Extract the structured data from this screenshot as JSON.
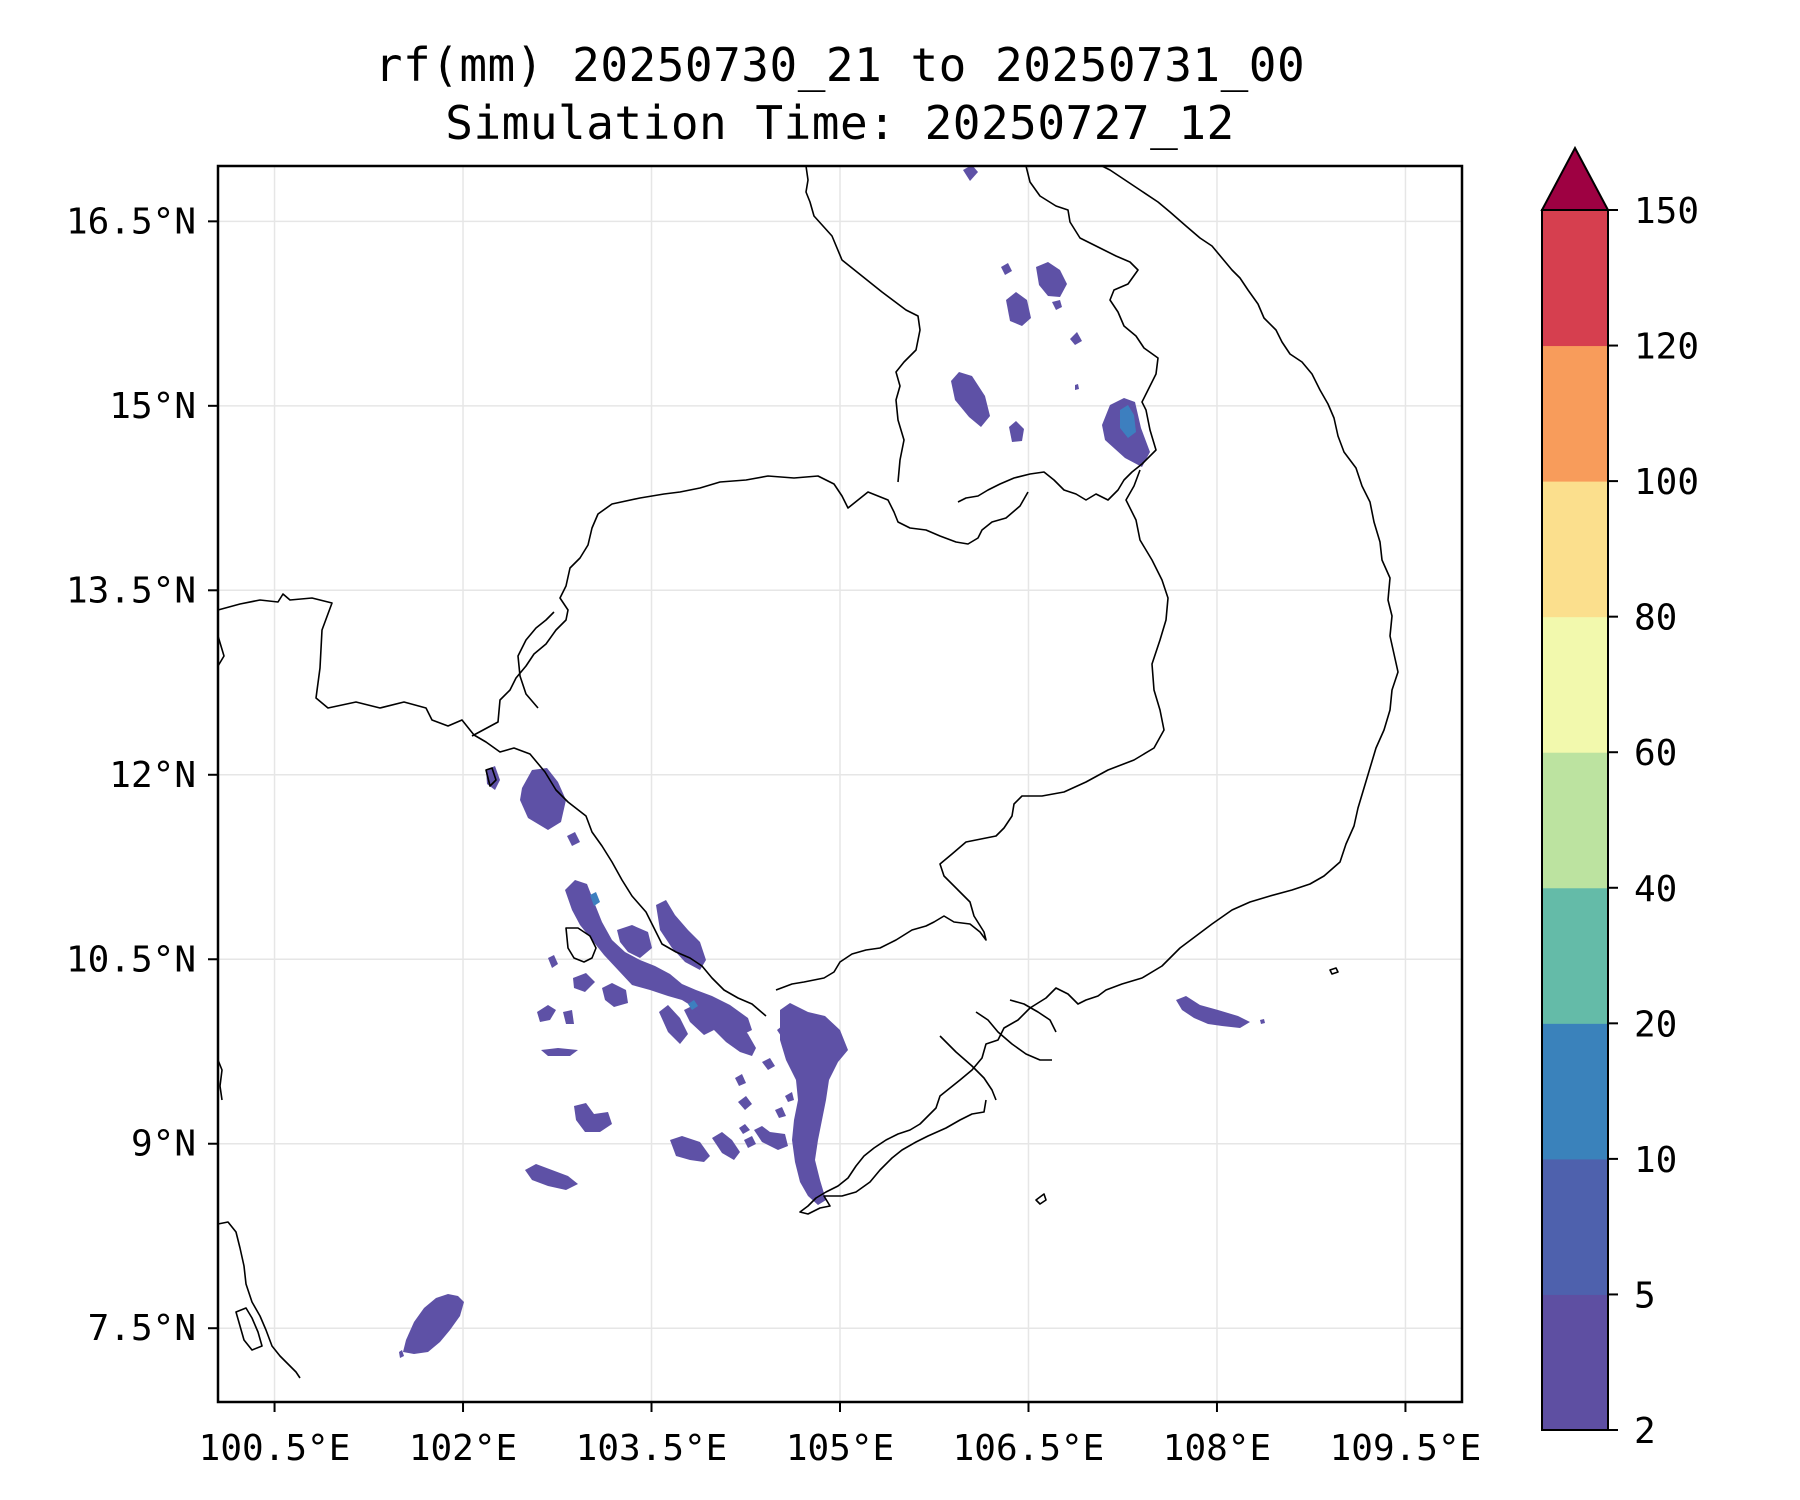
{
  "title": {
    "line1": "rf(mm) 20250730_21 to 20250731_00",
    "line2": "Simulation Time: 20250727_12"
  },
  "map": {
    "lon_range": [
      100.05,
      109.95
    ],
    "lat_range": [
      6.9,
      16.95
    ],
    "lon_ticks": [
      {
        "value": 100.5,
        "label": "100.5°E"
      },
      {
        "value": 102,
        "label": "102°E"
      },
      {
        "value": 103.5,
        "label": "103.5°E"
      },
      {
        "value": 105,
        "label": "105°E"
      },
      {
        "value": 106.5,
        "label": "106.5°E"
      },
      {
        "value": 108,
        "label": "108°E"
      },
      {
        "value": 109.5,
        "label": "109.5°E"
      }
    ],
    "lat_ticks": [
      {
        "value": 7.5,
        "label": "7.5°N"
      },
      {
        "value": 9,
        "label": "9°N"
      },
      {
        "value": 10.5,
        "label": "10.5°N"
      },
      {
        "value": 12,
        "label": "12°N"
      },
      {
        "value": 13.5,
        "label": "13.5°N"
      },
      {
        "value": 15,
        "label": "15°N"
      },
      {
        "value": 16.5,
        "label": "16.5°N"
      }
    ],
    "grid": true,
    "rain_color": "#5e51a6",
    "rain_color_heavy": "#3d7fbf"
  },
  "colorbar": {
    "labels": [
      "2",
      "5",
      "10",
      "20",
      "40",
      "60",
      "80",
      "100",
      "120",
      "150"
    ],
    "colors": [
      "#5e4fa2",
      "#4e61ad",
      "#3a82bb",
      "#64bba8",
      "#bce3a0",
      "#f2f9ad",
      "#fbdf8d",
      "#f89c5b",
      "#d63f4f"
    ],
    "extend_color": "#9e0142"
  }
}
